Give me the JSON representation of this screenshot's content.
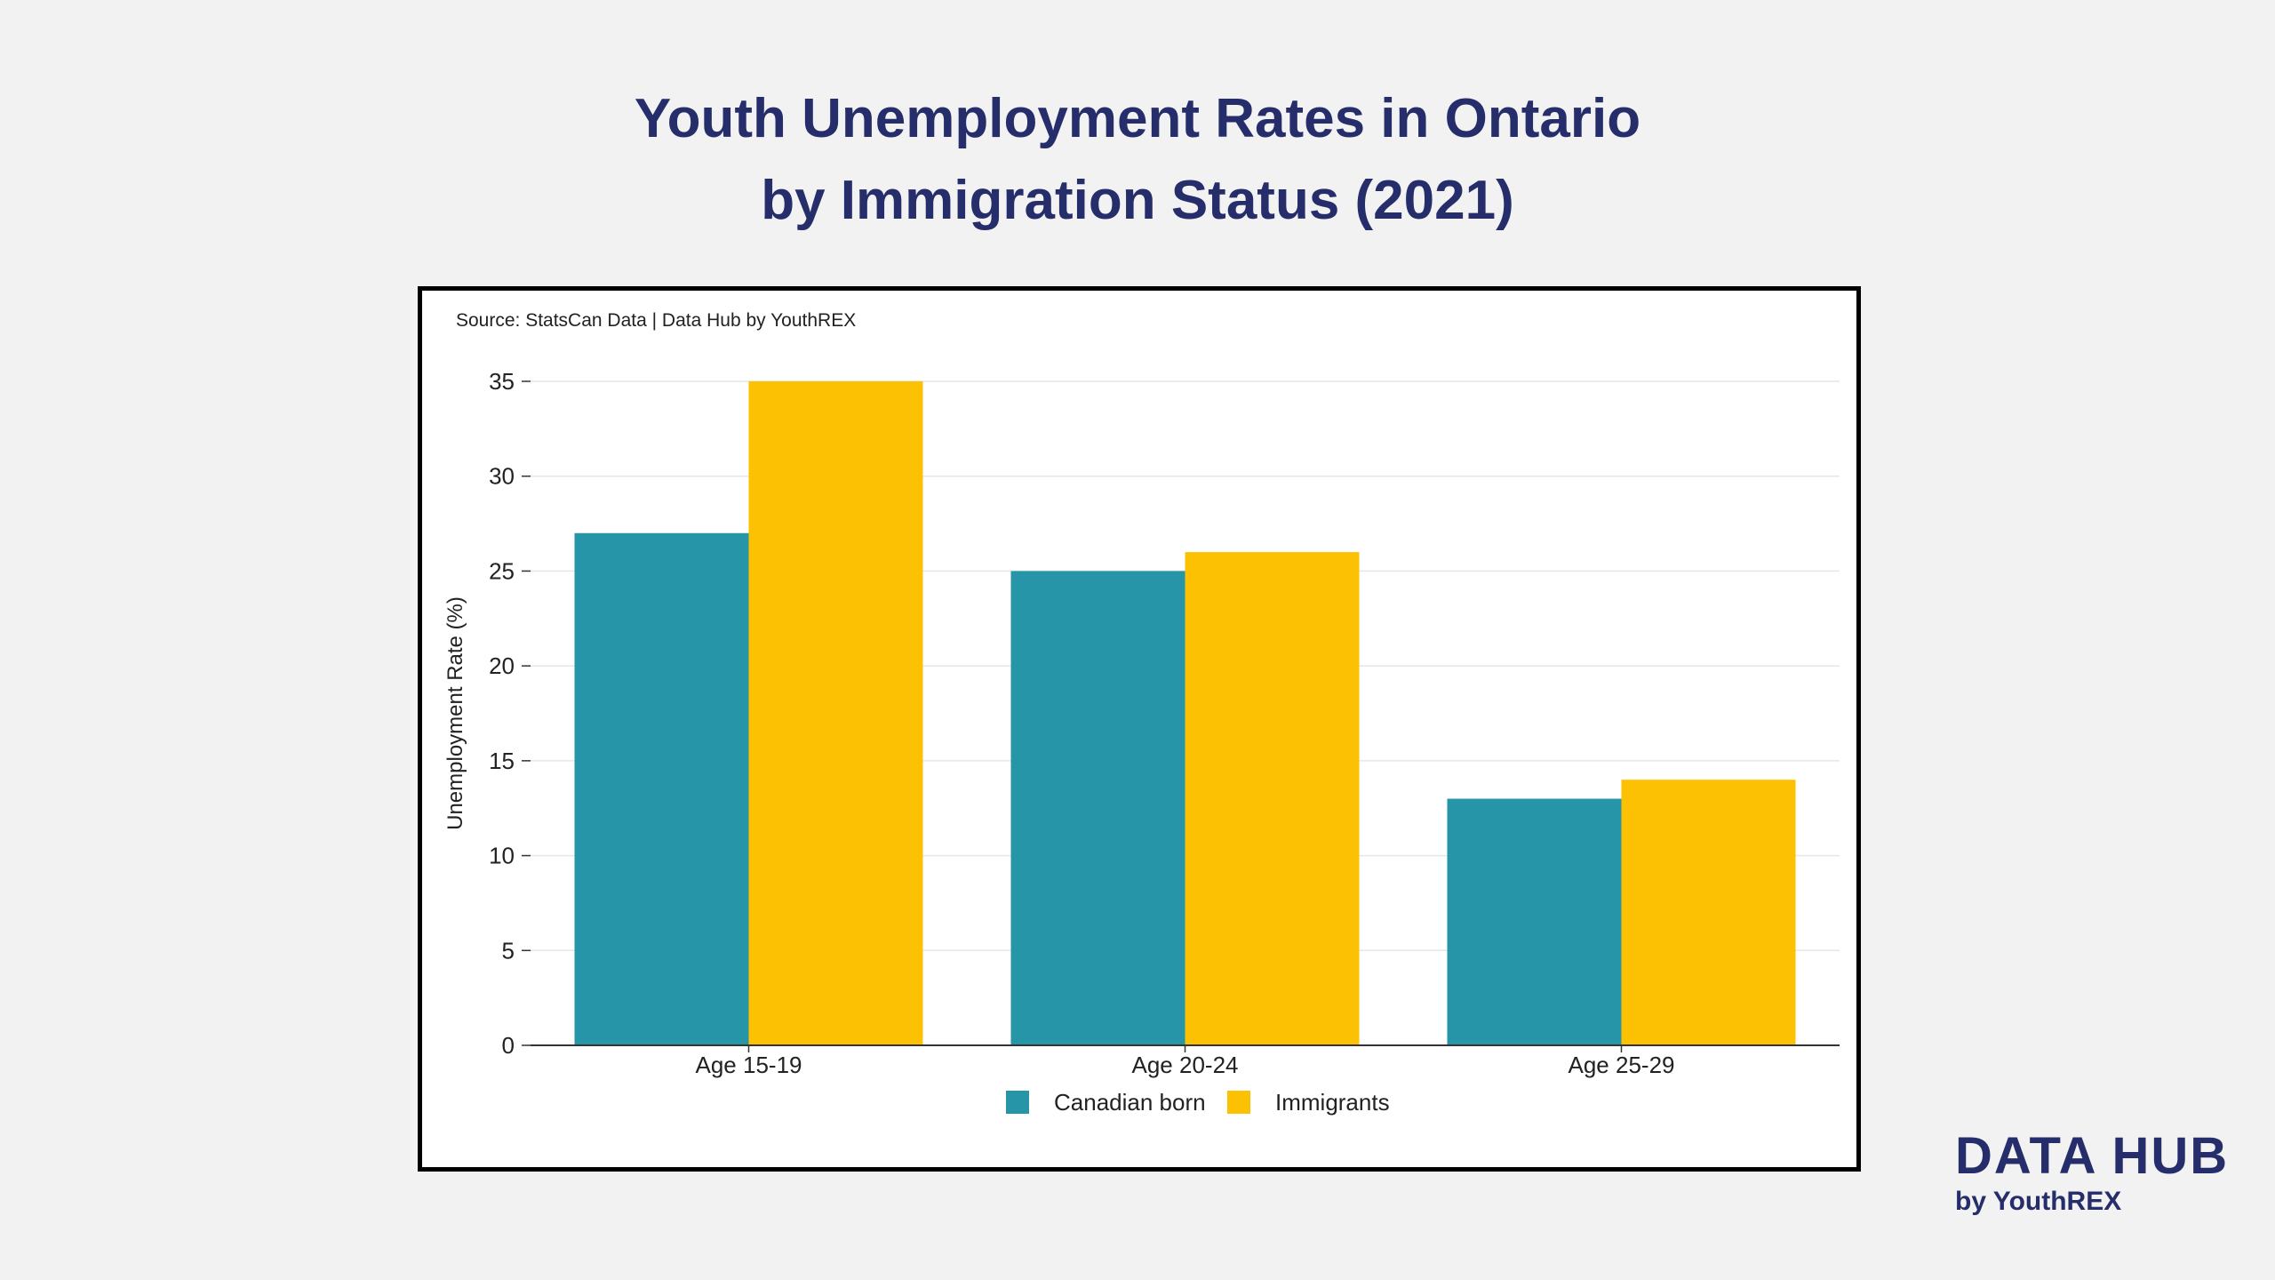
{
  "title": {
    "line1": "Youth Unemployment Rates in Ontario",
    "line2": "by Immigration Status (2021)"
  },
  "source": "Source: StatsCan Data | Data Hub by YouthREX",
  "brand": {
    "main": "DATA HUB",
    "sub": "by YouthREX"
  },
  "chart_data": {
    "type": "bar",
    "categories": [
      "Age 15-19",
      "Age 20-24",
      "Age 25-29"
    ],
    "series": [
      {
        "name": "Canadian born",
        "values": [
          27,
          25,
          13
        ],
        "color": "#2795a8"
      },
      {
        "name": "Immigrants",
        "values": [
          35,
          26,
          14
        ],
        "color": "#fdc103"
      }
    ],
    "ylabel": "Unemployment Rate (%)",
    "xlabel": "",
    "ylim": [
      0,
      35
    ],
    "yticks": [
      0,
      5,
      10,
      15,
      20,
      25,
      30,
      35
    ],
    "grid": true,
    "legend": "bottom-center"
  }
}
